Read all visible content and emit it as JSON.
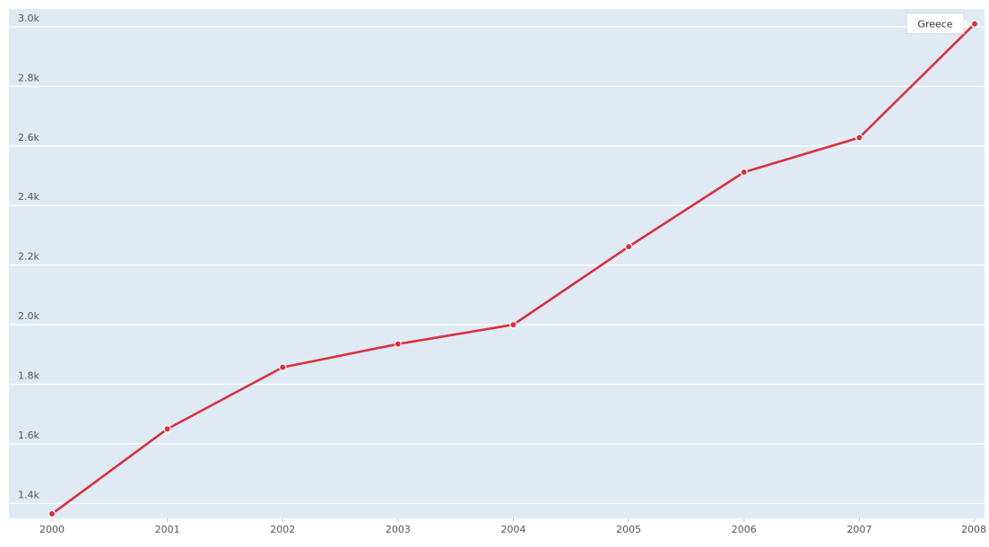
{
  "chart_data": {
    "type": "line",
    "title": "",
    "xlabel": "",
    "ylabel": "",
    "x": [
      "2000",
      "2001",
      "2002",
      "2003",
      "2004",
      "2005",
      "2006",
      "2007",
      "2008"
    ],
    "ylim": [
      1350,
      3060
    ],
    "y_ticks": [
      {
        "value": 1400,
        "label": "1.4k"
      },
      {
        "value": 1600,
        "label": "1.6k"
      },
      {
        "value": 1800,
        "label": "1.8k"
      },
      {
        "value": 2000,
        "label": "2.0k"
      },
      {
        "value": 2200,
        "label": "2.2k"
      },
      {
        "value": 2400,
        "label": "2.4k"
      },
      {
        "value": 2600,
        "label": "2.6k"
      },
      {
        "value": 2800,
        "label": "2.8k"
      },
      {
        "value": 3000,
        "label": "3.0k"
      }
    ],
    "grid": "horizontal",
    "series": [
      {
        "name": "Greece",
        "color": "#d9303e",
        "values": [
          1365,
          1650,
          1857,
          1935,
          2000,
          2262,
          2512,
          2628,
          3010
        ]
      }
    ],
    "colors": {
      "plot_background": "#dfeaf4",
      "gridline": "#ffffff",
      "point_outline": "#ffffff"
    }
  }
}
